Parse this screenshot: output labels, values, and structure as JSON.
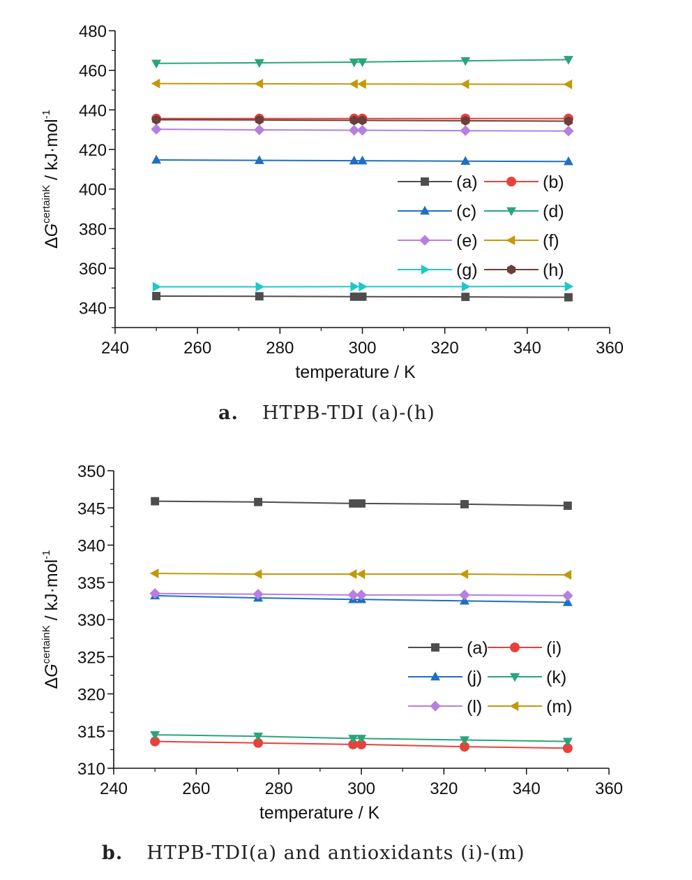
{
  "captions": {
    "a_letter": "a.",
    "a_text": "HTPB-TDI (a)-(h)",
    "b_letter": "b.",
    "b_text": "HTPB-TDI(a) and antioxidants (i)-(m)"
  },
  "chart_data": [
    {
      "type": "line",
      "title": "",
      "xlabel": "temperature / K",
      "ylabel_parts": {
        "prefix": "ΔG",
        "superscript": "certainK",
        "suffix": " / kJ·mol",
        "unit_exp": "-1"
      },
      "xlim": [
        240,
        360
      ],
      "ylim": [
        330,
        480
      ],
      "x_ticks": [
        240,
        260,
        280,
        300,
        320,
        340,
        360
      ],
      "y_ticks": [
        340,
        360,
        380,
        400,
        420,
        440,
        460,
        480
      ],
      "grid": false,
      "legend_position": "right-lower",
      "x": [
        250,
        275,
        298,
        300,
        325,
        350
      ],
      "series": [
        {
          "name": "(a)",
          "color": "#4d4d4d",
          "marker": "square",
          "values": [
            345.9,
            345.8,
            345.6,
            345.6,
            345.5,
            345.3
          ]
        },
        {
          "name": "(b)",
          "color": "#e8413c",
          "marker": "circle",
          "values": [
            435.6,
            435.6,
            435.6,
            435.6,
            435.6,
            435.6
          ]
        },
        {
          "name": "(c)",
          "color": "#1f6fc2",
          "marker": "triangle-up",
          "values": [
            414.7,
            414.5,
            414.3,
            414.3,
            414.1,
            413.9
          ]
        },
        {
          "name": "(d)",
          "color": "#2aa57a",
          "marker": "triangle-down",
          "values": [
            463.5,
            463.8,
            464.1,
            464.2,
            464.8,
            465.4
          ]
        },
        {
          "name": "(e)",
          "color": "#b77fe0",
          "marker": "diamond",
          "values": [
            430.2,
            429.9,
            429.7,
            429.7,
            429.5,
            429.3
          ]
        },
        {
          "name": "(f)",
          "color": "#c19a0c",
          "marker": "triangle-left",
          "values": [
            453.3,
            453.2,
            453.1,
            453.1,
            453.0,
            452.9
          ]
        },
        {
          "name": "(g)",
          "color": "#1ec8c8",
          "marker": "triangle-right",
          "values": [
            350.6,
            350.6,
            350.7,
            350.7,
            350.7,
            350.8
          ]
        },
        {
          "name": "(h)",
          "color": "#6b3f3a",
          "marker": "hexagon",
          "values": [
            435.0,
            434.9,
            434.7,
            434.7,
            434.5,
            434.3
          ]
        }
      ]
    },
    {
      "type": "line",
      "title": "",
      "xlabel": "temperature / K",
      "ylabel_parts": {
        "prefix": "ΔG",
        "superscript": "certainK",
        "suffix": " / kJ·mol",
        "unit_exp": "-1"
      },
      "xlim": [
        240,
        360
      ],
      "ylim": [
        310,
        350
      ],
      "x_ticks": [
        240,
        260,
        280,
        300,
        320,
        340,
        360
      ],
      "y_ticks": [
        310,
        315,
        320,
        325,
        330,
        335,
        340,
        345,
        350
      ],
      "grid": false,
      "legend_position": "right-middle",
      "x": [
        250,
        275,
        298,
        300,
        325,
        350
      ],
      "series": [
        {
          "name": "(a)",
          "color": "#4d4d4d",
          "marker": "square",
          "values": [
            345.9,
            345.8,
            345.6,
            345.6,
            345.5,
            345.3
          ]
        },
        {
          "name": "(i)",
          "color": "#e8413c",
          "marker": "circle",
          "values": [
            313.6,
            313.4,
            313.2,
            313.2,
            312.9,
            312.7
          ]
        },
        {
          "name": "(j)",
          "color": "#1f6fc2",
          "marker": "triangle-up",
          "values": [
            333.2,
            332.9,
            332.7,
            332.7,
            332.5,
            332.3
          ]
        },
        {
          "name": "(k)",
          "color": "#2aa57a",
          "marker": "triangle-down",
          "values": [
            314.5,
            314.3,
            314.0,
            314.0,
            313.8,
            313.6
          ]
        },
        {
          "name": "(l)",
          "color": "#b77fe0",
          "marker": "diamond",
          "values": [
            333.5,
            333.4,
            333.3,
            333.3,
            333.3,
            333.2
          ]
        },
        {
          "name": "(m)",
          "color": "#c19a0c",
          "marker": "triangle-left",
          "values": [
            336.2,
            336.1,
            336.1,
            336.1,
            336.1,
            336.0
          ]
        }
      ]
    }
  ]
}
